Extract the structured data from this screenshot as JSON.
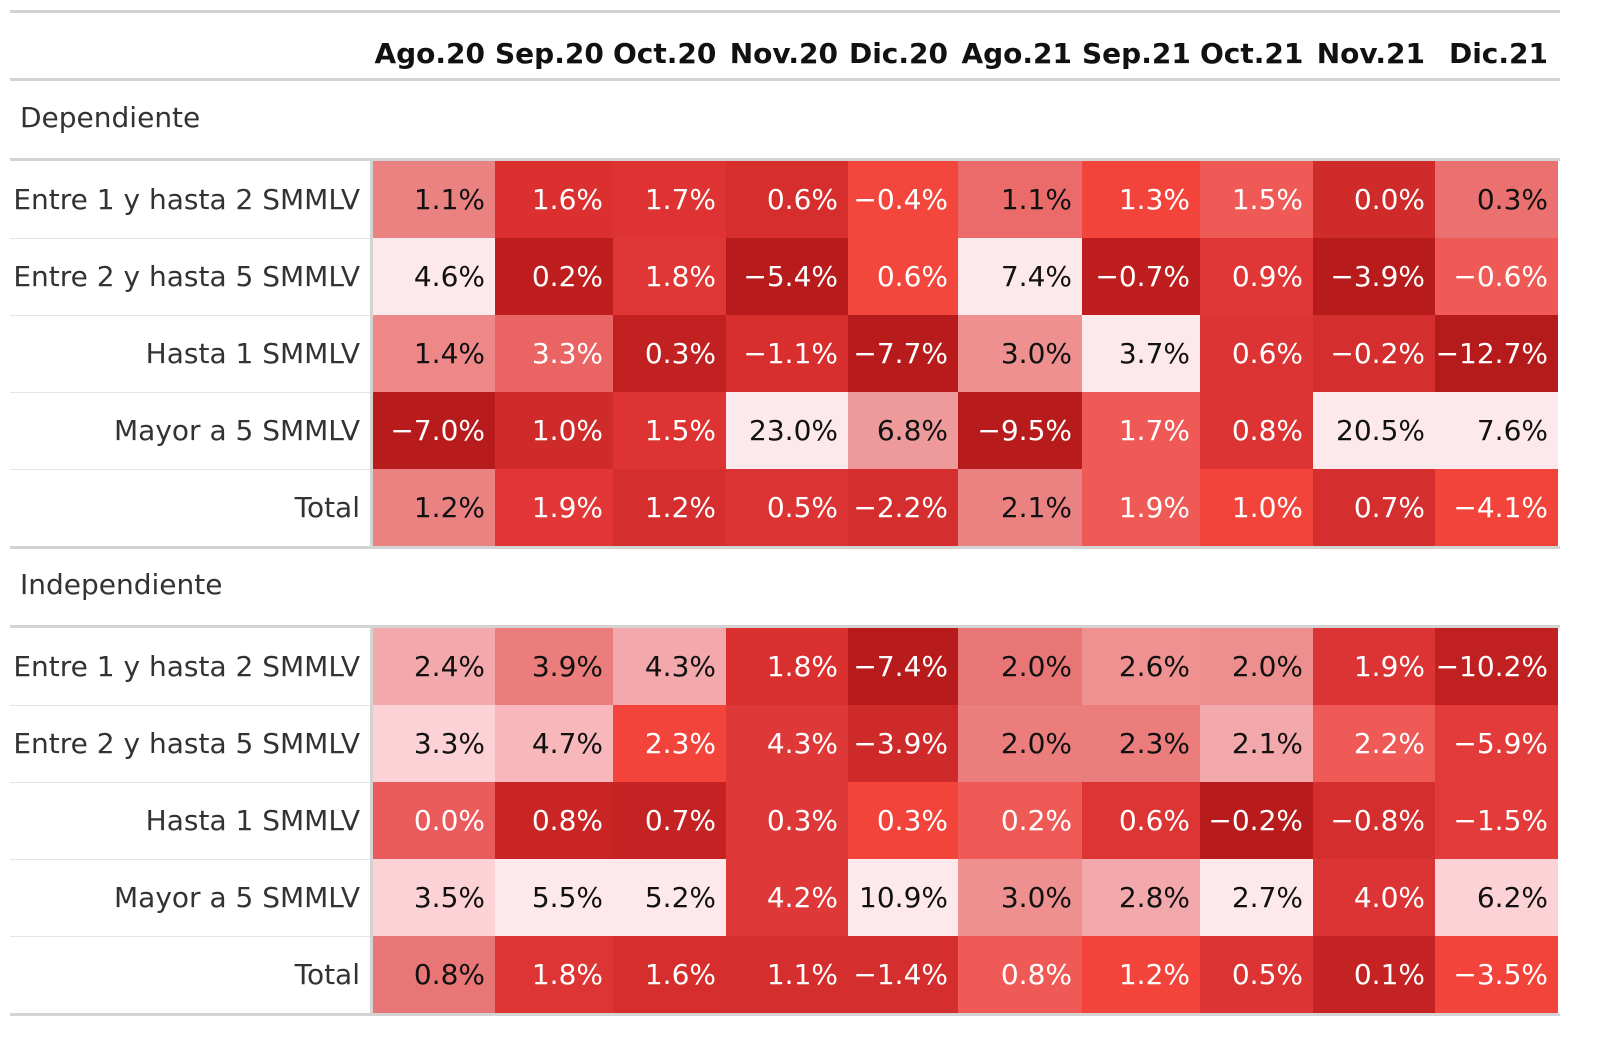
{
  "chart_data": {
    "type": "table",
    "columns": [
      "Ago.20",
      "Sep.20",
      "Oct.20",
      "Nov.20",
      "Dic.20",
      "Ago.21",
      "Sep.21",
      "Oct.21",
      "Nov.21",
      "Dic.21"
    ],
    "groups": [
      {
        "name": "Dependiente",
        "rows": [
          {
            "label": "Entre 1 y hasta 2 SMMLV",
            "values": [
              "1.1%",
              "1.6%",
              "1.7%",
              "0.6%",
              "−0.4%",
              "1.1%",
              "1.3%",
              "1.5%",
              "0.0%",
              "0.3%"
            ],
            "colors": [
              "#eb8282",
              "#dc2f2f",
              "#df3333",
              "#d62d2d",
              "#f3473d",
              "#eb6b6b",
              "#f3443c",
              "#ef5a56",
              "#cf2b2b",
              "#eb7070"
            ]
          },
          {
            "label": "Entre 2 y hasta 5 SMMLV",
            "values": [
              "4.6%",
              "0.2%",
              "1.8%",
              "−5.4%",
              "0.6%",
              "7.4%",
              "−0.7%",
              "0.9%",
              "−3.9%",
              "−0.6%"
            ],
            "colors": [
              "#fde9ec",
              "#be1e1e",
              "#e13636",
              "#b81b1b",
              "#f3473d",
              "#fde9ec",
              "#be1e1e",
              "#e13636",
              "#b81b1b",
              "#ef5a56"
            ]
          },
          {
            "label": "Hasta 1 SMMLV",
            "values": [
              "1.4%",
              "3.3%",
              "0.3%",
              "−1.1%",
              "−7.7%",
              "3.0%",
              "3.7%",
              "0.6%",
              "−0.2%",
              "−12.7%"
            ],
            "colors": [
              "#ee8787",
              "#eb6464",
              "#c22121",
              "#d82e2e",
              "#b81b1b",
              "#ee9090",
              "#fde9ec",
              "#dc3434",
              "#d42e2e",
              "#b51b1b"
            ]
          },
          {
            "label": "Mayor a 5 SMMLV",
            "values": [
              "−7.0%",
              "1.0%",
              "1.5%",
              "23.0%",
              "6.8%",
              "−9.5%",
              "1.7%",
              "0.8%",
              "20.5%",
              "7.6%"
            ],
            "colors": [
              "#b81b1b",
              "#d02b2b",
              "#dd3333",
              "#fde9ec",
              "#ee9a9a",
              "#b81b1b",
              "#ef5a56",
              "#dc3434",
              "#fde9ec",
              "#fde9ec"
            ]
          },
          {
            "label": "Total",
            "values": [
              "1.2%",
              "1.9%",
              "1.2%",
              "0.5%",
              "−2.2%",
              "2.1%",
              "1.9%",
              "1.0%",
              "0.7%",
              "−4.1%"
            ],
            "colors": [
              "#eb8282",
              "#e33636",
              "#d42e2e",
              "#dc3434",
              "#d52e2e",
              "#eb8282",
              "#ef5a56",
              "#f3443c",
              "#d42e2e",
              "#f3443c"
            ]
          }
        ]
      },
      {
        "name": "Independiente",
        "rows": [
          {
            "label": "Entre 1 y hasta 2 SMMLV",
            "values": [
              "2.4%",
              "3.9%",
              "4.3%",
              "1.8%",
              "−7.4%",
              "2.0%",
              "2.6%",
              "2.0%",
              "1.9%",
              "−10.2%"
            ],
            "colors": [
              "#f3a9ab",
              "#eb7d7d",
              "#f3a9ab",
              "#db3030",
              "#b81b1b",
              "#e97676",
              "#ef9191",
              "#ee8f8f",
              "#dc3434",
              "#c02020"
            ]
          },
          {
            "label": "Entre 2 y hasta 5 SMMLV",
            "values": [
              "3.3%",
              "4.7%",
              "2.3%",
              "4.3%",
              "−3.9%",
              "2.0%",
              "2.3%",
              "2.1%",
              "2.2%",
              "−5.9%"
            ],
            "colors": [
              "#fcd2d6",
              "#f7b7bb",
              "#f3443c",
              "#df3838",
              "#ce2a2a",
              "#eb7d7d",
              "#eb7d7d",
              "#f3a9ab",
              "#ef5a56",
              "#e33a3a"
            ]
          },
          {
            "label": "Hasta 1 SMMLV",
            "values": [
              "0.0%",
              "0.8%",
              "0.7%",
              "0.3%",
              "0.3%",
              "0.2%",
              "0.6%",
              "−0.2%",
              "−0.8%",
              "−1.5%"
            ],
            "colors": [
              "#ea5c5c",
              "#ca2525",
              "#c52323",
              "#df3838",
              "#f3443c",
              "#ef5a56",
              "#dd3434",
              "#b81b1b",
              "#d42e2e",
              "#e33a3a"
            ]
          },
          {
            "label": "Mayor a 5 SMMLV",
            "values": [
              "3.5%",
              "5.5%",
              "5.2%",
              "4.2%",
              "10.9%",
              "3.0%",
              "2.8%",
              "2.7%",
              "4.0%",
              "6.2%"
            ],
            "colors": [
              "#fcd2d6",
              "#fde9ec",
              "#fde9ec",
              "#df3838",
              "#fde9ec",
              "#ee9090",
              "#f3a9ab",
              "#fde9ec",
              "#dc3434",
              "#fcd2d6"
            ]
          },
          {
            "label": "Total",
            "values": [
              "0.8%",
              "1.8%",
              "1.6%",
              "1.1%",
              "−1.4%",
              "0.8%",
              "1.2%",
              "0.5%",
              "0.1%",
              "−3.5%"
            ],
            "colors": [
              "#e97676",
              "#dd3434",
              "#d62d2d",
              "#d42e2e",
              "#d42e2e",
              "#ef5a56",
              "#f3443c",
              "#dc3434",
              "#c52323",
              "#f3443c"
            ]
          }
        ]
      }
    ]
  }
}
